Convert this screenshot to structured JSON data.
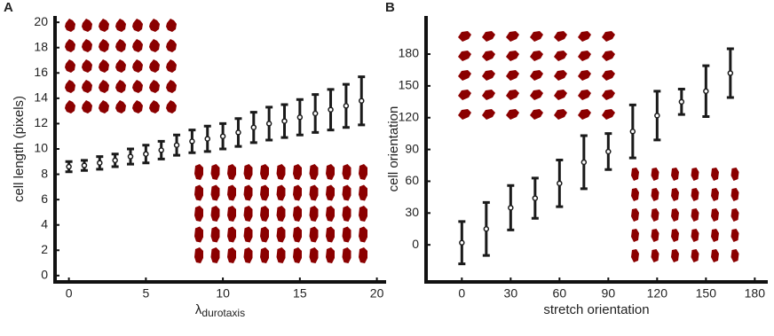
{
  "chart_data": [
    {
      "type": "errorbar",
      "panel_label": "A",
      "y_label": "cell length (pixels)",
      "x_label": "λ",
      "x_label_subscript": "durotaxis",
      "x": [
        0,
        1,
        2,
        3,
        4,
        5,
        6,
        7,
        8,
        9,
        10,
        11,
        12,
        13,
        14,
        15,
        16,
        17,
        18,
        19
      ],
      "series": [
        {
          "color": "#1a1a1a",
          "values": [
            8.6,
            8.7,
            8.9,
            9.1,
            9.4,
            9.6,
            9.9,
            10.3,
            10.6,
            10.8,
            11.0,
            11.3,
            11.7,
            12.0,
            12.2,
            12.5,
            12.8,
            13.1,
            13.4,
            13.8
          ],
          "errors": [
            0.4,
            0.4,
            0.5,
            0.5,
            0.6,
            0.7,
            0.7,
            0.8,
            0.9,
            1.0,
            1.0,
            1.1,
            1.2,
            1.3,
            1.3,
            1.4,
            1.5,
            1.6,
            1.7,
            1.9
          ]
        }
      ],
      "xlim": [
        -0.9,
        20.6
      ],
      "ylim": [
        -0.5,
        20.5
      ],
      "xticks": [
        0,
        5,
        10,
        15,
        20
      ],
      "yticks": [
        0,
        2,
        4,
        6,
        8,
        10,
        12,
        14,
        16,
        18,
        20
      ]
    },
    {
      "type": "errorbar",
      "panel_label": "B",
      "y_label": "cell orientation",
      "x_label": "stretch orientation",
      "x": [
        0,
        15,
        30,
        45,
        60,
        75,
        90,
        105,
        120,
        135,
        150,
        165
      ],
      "series": [
        {
          "color": "#1a1a1a",
          "values": [
            2,
            15,
            35,
            44,
            58,
            78,
            88,
            107,
            122,
            135,
            145,
            162
          ],
          "errors": [
            20,
            25,
            21,
            19,
            22,
            25,
            17,
            25,
            23,
            12,
            24,
            23
          ]
        }
      ],
      "xlim": [
        -22,
        188
      ],
      "ylim": [
        -35,
        216
      ],
      "xticks": [
        0,
        30,
        60,
        90,
        120,
        150,
        180
      ],
      "yticks": [
        0,
        30,
        60,
        90,
        120,
        150,
        180
      ]
    }
  ]
}
